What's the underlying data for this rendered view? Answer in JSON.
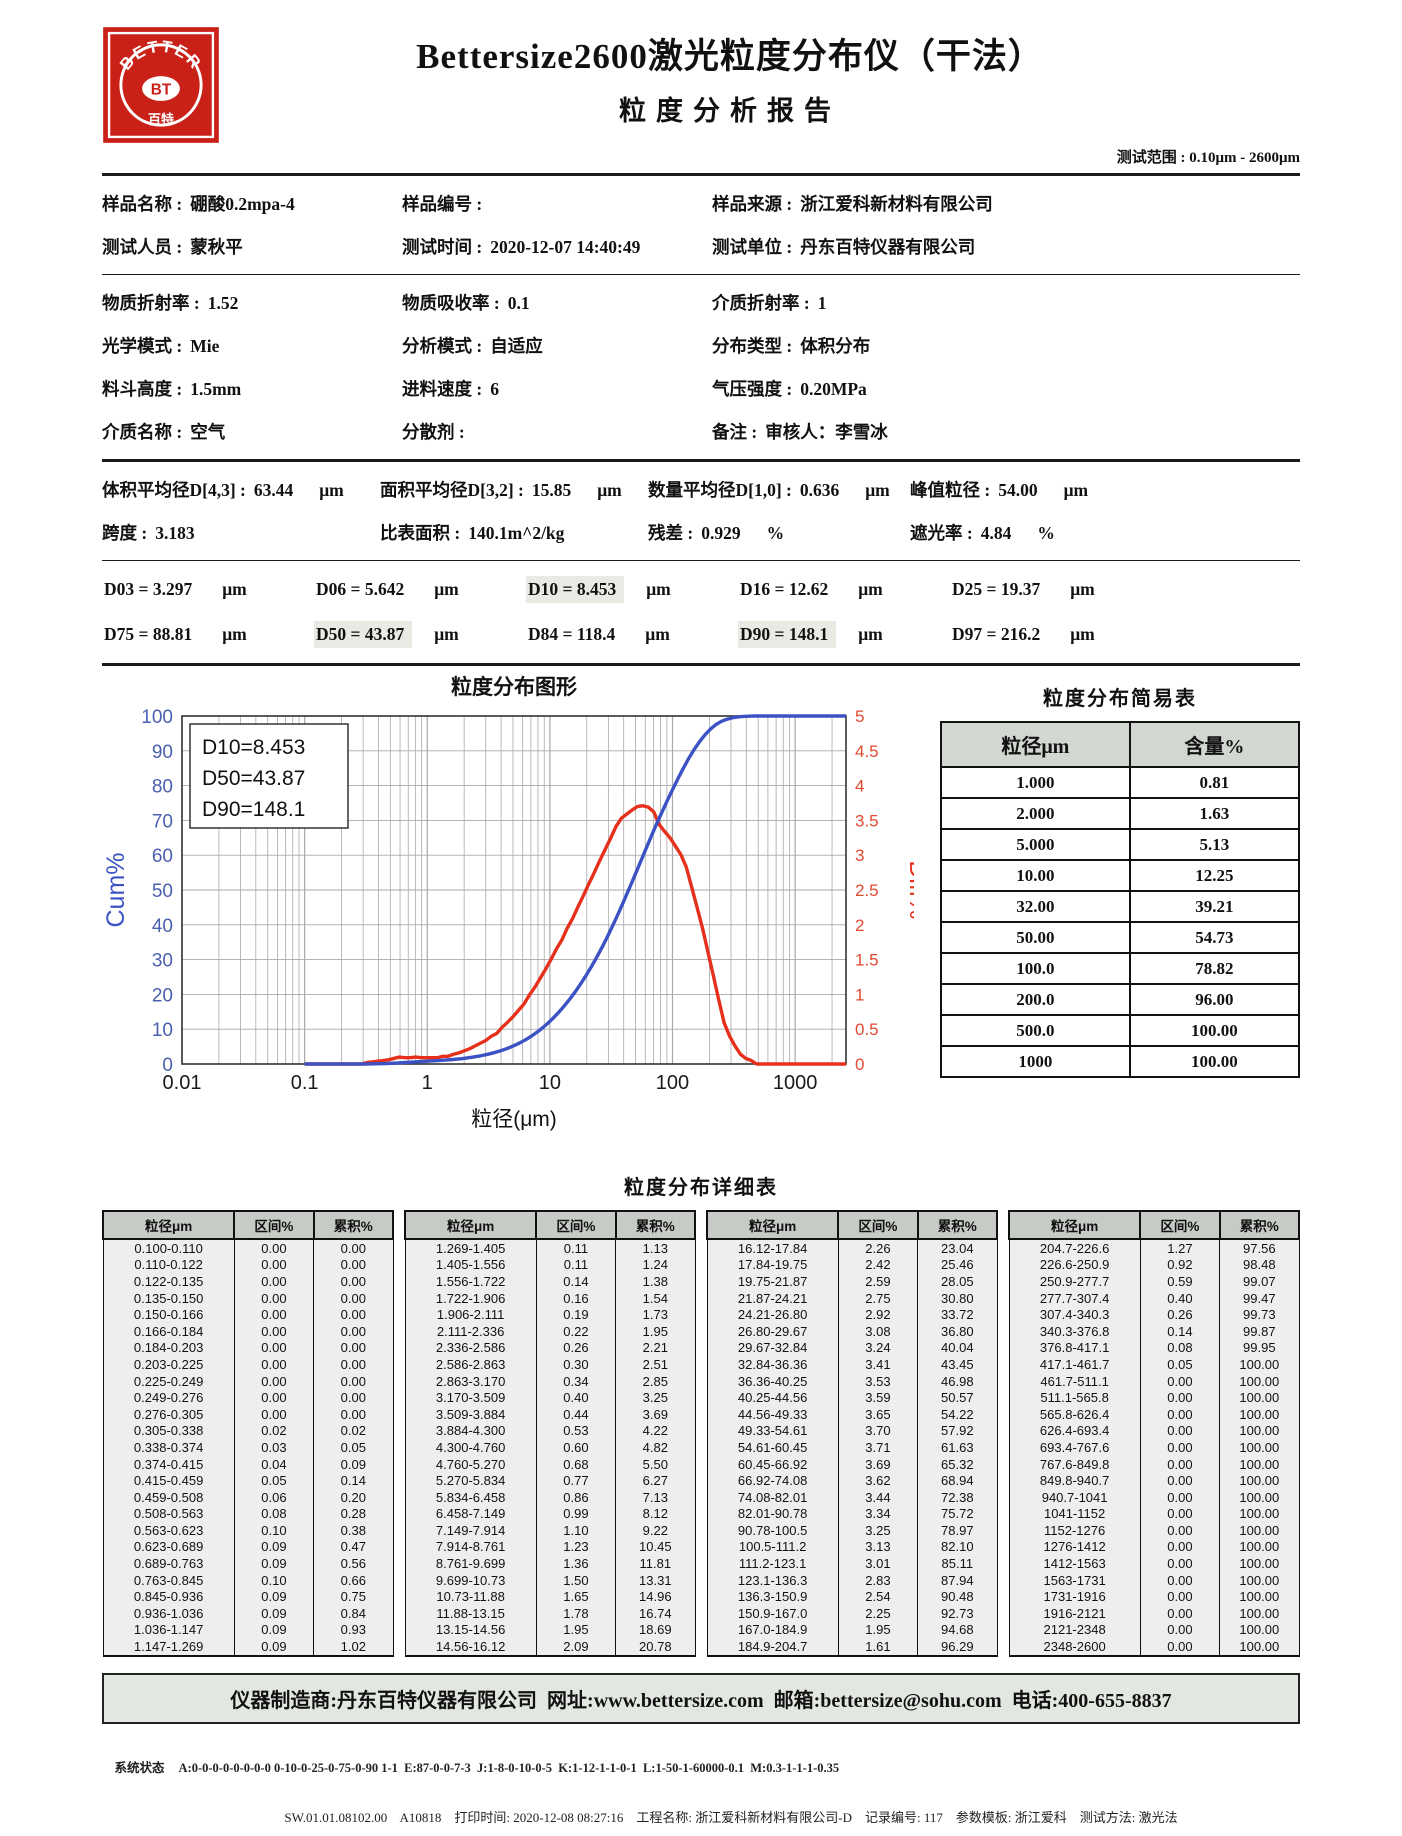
{
  "header": {
    "brand_title": "Bettersize2600激光粒度分布仪（干法）",
    "report_title": "粒度分析报告",
    "test_range": "测试范围 : 0.10μm - 2600μm",
    "logo": {
      "arc_text": "BETTER",
      "center_text": "BT",
      "bottom_text": "百特",
      "color": "#c92018"
    }
  },
  "sample_info": [
    [
      {
        "label": "样品名称 :",
        "value": "硼酸0.2mpa-4"
      },
      {
        "label": "样品编号 :",
        "value": ""
      },
      {
        "label": "样品来源 :",
        "value": "浙江爱科新材料有限公司"
      }
    ],
    [
      {
        "label": "测试人员 :",
        "value": "蒙秋平"
      },
      {
        "label": "测试时间 :",
        "value": "2020-12-07  14:40:49"
      },
      {
        "label": "测试单位 :",
        "value": "丹东百特仪器有限公司"
      }
    ]
  ],
  "parameters": [
    [
      {
        "label": "物质折射率 :",
        "value": "1.52"
      },
      {
        "label": "物质吸收率 :",
        "value": "0.1"
      },
      {
        "label": "介质折射率 :",
        "value": "1"
      }
    ],
    [
      {
        "label": "光学模式 :",
        "value": "Mie"
      },
      {
        "label": "分析模式 :",
        "value": "自适应"
      },
      {
        "label": "分布类型 :",
        "value": "体积分布"
      }
    ],
    [
      {
        "label": "料斗高度 :",
        "value": "1.5mm"
      },
      {
        "label": "进料速度 :",
        "value": "6"
      },
      {
        "label": "气压强度 :",
        "value": "0.20MPa"
      }
    ],
    [
      {
        "label": "介质名称 :",
        "value": "空气"
      },
      {
        "label": "分散剂 :",
        "value": ""
      },
      {
        "label": "备注 :",
        "value": "审核人：李雪冰"
      }
    ]
  ],
  "averages": [
    [
      {
        "label": "体积平均径D[4,3] :",
        "value": "63.44",
        "unit": "μm"
      },
      {
        "label": "面积平均径D[3,2] :",
        "value": "15.85",
        "unit": "μm"
      },
      {
        "label": "数量平均径D[1,0] :",
        "value": "0.636",
        "unit": "μm"
      },
      {
        "label": "峰值粒径 :",
        "value": "54.00",
        "unit": "μm"
      }
    ],
    [
      {
        "label": "跨度 :",
        "value": "3.183",
        "unit": ""
      },
      {
        "label": "比表面积 :",
        "value": "140.1m^2/kg",
        "unit": ""
      },
      {
        "label": "残差 :",
        "value": "0.929",
        "unit": "%"
      },
      {
        "label": "遮光率 :",
        "value": "4.84",
        "unit": "%"
      }
    ]
  ],
  "d_values": [
    [
      {
        "name": "D03",
        "value": "3.297",
        "unit": "μm",
        "highlight": false
      },
      {
        "name": "D06",
        "value": "5.642",
        "unit": "μm",
        "highlight": false
      },
      {
        "name": "D10",
        "value": "8.453",
        "unit": "μm",
        "highlight": true
      },
      {
        "name": "D16",
        "value": "12.62",
        "unit": "μm",
        "highlight": false
      },
      {
        "name": "D25",
        "value": "19.37",
        "unit": "μm",
        "highlight": false
      }
    ],
    [
      {
        "name": "D75",
        "value": "88.81",
        "unit": "μm",
        "highlight": false
      },
      {
        "name": "D50",
        "value": "43.87",
        "unit": "μm",
        "highlight": true
      },
      {
        "name": "D84",
        "value": "118.4",
        "unit": "μm",
        "highlight": false
      },
      {
        "name": "D90",
        "value": "148.1",
        "unit": "μm",
        "highlight": true
      },
      {
        "name": "D97",
        "value": "216.2",
        "unit": "μm",
        "highlight": false
      }
    ]
  ],
  "chart_data": {
    "type": "line",
    "title": "粒度分布图形",
    "xlabel": "粒径(μm)",
    "x_scale": "log",
    "x_range": [
      0.01,
      2600
    ],
    "x_ticks": [
      "0.01",
      "0.1",
      "1",
      "10",
      "100",
      "1000"
    ],
    "y_left": {
      "label": "Cum%",
      "range": [
        0,
        100
      ],
      "tick_step": 10,
      "color": "#4a5fb0"
    },
    "y_right": {
      "label": "Diff%",
      "range": [
        0,
        5
      ],
      "tick_step": 0.5,
      "color": "#e24a30"
    },
    "legend_lines": [
      "D10=8.453",
      "D50=43.87",
      "D90=148.1"
    ],
    "series": [
      {
        "name": "Cum%",
        "axis": "left",
        "color": "#3b52c4",
        "source": "bins cumulative_pct at bin upper edge"
      },
      {
        "name": "Diff%",
        "axis": "right",
        "color": "#e6301c",
        "source": "bins interval_pct at bin geometric mean"
      }
    ],
    "bins_columns": [
      "粒径μm",
      "区间%",
      "累积%"
    ],
    "bins": [
      [
        "0.100-0.110",
        "0.00",
        "0.00"
      ],
      [
        "0.110-0.122",
        "0.00",
        "0.00"
      ],
      [
        "0.122-0.135",
        "0.00",
        "0.00"
      ],
      [
        "0.135-0.150",
        "0.00",
        "0.00"
      ],
      [
        "0.150-0.166",
        "0.00",
        "0.00"
      ],
      [
        "0.166-0.184",
        "0.00",
        "0.00"
      ],
      [
        "0.184-0.203",
        "0.00",
        "0.00"
      ],
      [
        "0.203-0.225",
        "0.00",
        "0.00"
      ],
      [
        "0.225-0.249",
        "0.00",
        "0.00"
      ],
      [
        "0.249-0.276",
        "0.00",
        "0.00"
      ],
      [
        "0.276-0.305",
        "0.00",
        "0.00"
      ],
      [
        "0.305-0.338",
        "0.02",
        "0.02"
      ],
      [
        "0.338-0.374",
        "0.03",
        "0.05"
      ],
      [
        "0.374-0.415",
        "0.04",
        "0.09"
      ],
      [
        "0.415-0.459",
        "0.05",
        "0.14"
      ],
      [
        "0.459-0.508",
        "0.06",
        "0.20"
      ],
      [
        "0.508-0.563",
        "0.08",
        "0.28"
      ],
      [
        "0.563-0.623",
        "0.10",
        "0.38"
      ],
      [
        "0.623-0.689",
        "0.09",
        "0.47"
      ],
      [
        "0.689-0.763",
        "0.09",
        "0.56"
      ],
      [
        "0.763-0.845",
        "0.10",
        "0.66"
      ],
      [
        "0.845-0.936",
        "0.09",
        "0.75"
      ],
      [
        "0.936-1.036",
        "0.09",
        "0.84"
      ],
      [
        "1.036-1.147",
        "0.09",
        "0.93"
      ],
      [
        "1.147-1.269",
        "0.09",
        "1.02"
      ],
      [
        "1.269-1.405",
        "0.11",
        "1.13"
      ],
      [
        "1.405-1.556",
        "0.11",
        "1.24"
      ],
      [
        "1.556-1.722",
        "0.14",
        "1.38"
      ],
      [
        "1.722-1.906",
        "0.16",
        "1.54"
      ],
      [
        "1.906-2.111",
        "0.19",
        "1.73"
      ],
      [
        "2.111-2.336",
        "0.22",
        "1.95"
      ],
      [
        "2.336-2.586",
        "0.26",
        "2.21"
      ],
      [
        "2.586-2.863",
        "0.30",
        "2.51"
      ],
      [
        "2.863-3.170",
        "0.34",
        "2.85"
      ],
      [
        "3.170-3.509",
        "0.40",
        "3.25"
      ],
      [
        "3.509-3.884",
        "0.44",
        "3.69"
      ],
      [
        "3.884-4.300",
        "0.53",
        "4.22"
      ],
      [
        "4.300-4.760",
        "0.60",
        "4.82"
      ],
      [
        "4.760-5.270",
        "0.68",
        "5.50"
      ],
      [
        "5.270-5.834",
        "0.77",
        "6.27"
      ],
      [
        "5.834-6.458",
        "0.86",
        "7.13"
      ],
      [
        "6.458-7.149",
        "0.99",
        "8.12"
      ],
      [
        "7.149-7.914",
        "1.10",
        "9.22"
      ],
      [
        "7.914-8.761",
        "1.23",
        "10.45"
      ],
      [
        "8.761-9.699",
        "1.36",
        "11.81"
      ],
      [
        "9.699-10.73",
        "1.50",
        "13.31"
      ],
      [
        "10.73-11.88",
        "1.65",
        "14.96"
      ],
      [
        "11.88-13.15",
        "1.78",
        "16.74"
      ],
      [
        "13.15-14.56",
        "1.95",
        "18.69"
      ],
      [
        "14.56-16.12",
        "2.09",
        "20.78"
      ],
      [
        "16.12-17.84",
        "2.26",
        "23.04"
      ],
      [
        "17.84-19.75",
        "2.42",
        "25.46"
      ],
      [
        "19.75-21.87",
        "2.59",
        "28.05"
      ],
      [
        "21.87-24.21",
        "2.75",
        "30.80"
      ],
      [
        "24.21-26.80",
        "2.92",
        "33.72"
      ],
      [
        "26.80-29.67",
        "3.08",
        "36.80"
      ],
      [
        "29.67-32.84",
        "3.24",
        "40.04"
      ],
      [
        "32.84-36.36",
        "3.41",
        "43.45"
      ],
      [
        "36.36-40.25",
        "3.53",
        "46.98"
      ],
      [
        "40.25-44.56",
        "3.59",
        "50.57"
      ],
      [
        "44.56-49.33",
        "3.65",
        "54.22"
      ],
      [
        "49.33-54.61",
        "3.70",
        "57.92"
      ],
      [
        "54.61-60.45",
        "3.71",
        "61.63"
      ],
      [
        "60.45-66.92",
        "3.69",
        "65.32"
      ],
      [
        "66.92-74.08",
        "3.62",
        "68.94"
      ],
      [
        "74.08-82.01",
        "3.44",
        "72.38"
      ],
      [
        "82.01-90.78",
        "3.34",
        "75.72"
      ],
      [
        "90.78-100.5",
        "3.25",
        "78.97"
      ],
      [
        "100.5-111.2",
        "3.13",
        "82.10"
      ],
      [
        "111.2-123.1",
        "3.01",
        "85.11"
      ],
      [
        "123.1-136.3",
        "2.83",
        "87.94"
      ],
      [
        "136.3-150.9",
        "2.54",
        "90.48"
      ],
      [
        "150.9-167.0",
        "2.25",
        "92.73"
      ],
      [
        "167.0-184.9",
        "1.95",
        "94.68"
      ],
      [
        "184.9-204.7",
        "1.61",
        "96.29"
      ],
      [
        "204.7-226.6",
        "1.27",
        "97.56"
      ],
      [
        "226.6-250.9",
        "0.92",
        "98.48"
      ],
      [
        "250.9-277.7",
        "0.59",
        "99.07"
      ],
      [
        "277.7-307.4",
        "0.40",
        "99.47"
      ],
      [
        "307.4-340.3",
        "0.26",
        "99.73"
      ],
      [
        "340.3-376.8",
        "0.14",
        "99.87"
      ],
      [
        "376.8-417.1",
        "0.08",
        "99.95"
      ],
      [
        "417.1-461.7",
        "0.05",
        "100.00"
      ],
      [
        "461.7-511.1",
        "0.00",
        "100.00"
      ],
      [
        "511.1-565.8",
        "0.00",
        "100.00"
      ],
      [
        "565.8-626.4",
        "0.00",
        "100.00"
      ],
      [
        "626.4-693.4",
        "0.00",
        "100.00"
      ],
      [
        "693.4-767.6",
        "0.00",
        "100.00"
      ],
      [
        "767.6-849.8",
        "0.00",
        "100.00"
      ],
      [
        "849.8-940.7",
        "0.00",
        "100.00"
      ],
      [
        "940.7-1041",
        "0.00",
        "100.00"
      ],
      [
        "1041-1152",
        "0.00",
        "100.00"
      ],
      [
        "1152-1276",
        "0.00",
        "100.00"
      ],
      [
        "1276-1412",
        "0.00",
        "100.00"
      ],
      [
        "1412-1563",
        "0.00",
        "100.00"
      ],
      [
        "1563-1731",
        "0.00",
        "100.00"
      ],
      [
        "1731-1916",
        "0.00",
        "100.00"
      ],
      [
        "1916-2121",
        "0.00",
        "100.00"
      ],
      [
        "2121-2348",
        "0.00",
        "100.00"
      ],
      [
        "2348-2600",
        "0.00",
        "100.00"
      ]
    ]
  },
  "simple_table": {
    "title": "粒度分布简易表",
    "headers": [
      "粒径μm",
      "含量%"
    ],
    "rows": [
      [
        "1.000",
        "0.81"
      ],
      [
        "2.000",
        "1.63"
      ],
      [
        "5.000",
        "5.13"
      ],
      [
        "10.00",
        "12.25"
      ],
      [
        "32.00",
        "39.21"
      ],
      [
        "50.00",
        "54.73"
      ],
      [
        "100.0",
        "78.82"
      ],
      [
        "200.0",
        "96.00"
      ],
      [
        "500.0",
        "100.00"
      ],
      [
        "1000",
        "100.00"
      ]
    ]
  },
  "detail_table": {
    "title": "粒度分布详细表",
    "group_headers": [
      "粒径μm",
      "区间%",
      "累积%"
    ],
    "groups": 4,
    "rows_per_group": 25
  },
  "footer": {
    "manufacturer_line": "仪器制造商:丹东百特仪器有限公司  网址:www.bettersize.com  邮箱:bettersize@sohu.com  电话:400-655-8837",
    "system_status_label": "系统状态",
    "system_status": "A:0-0-0-0-0-0-0-0 0-10-0-25-0-75-0-90 1-1  E:87-0-0-7-3  J:1-8-0-10-0-5  K:1-12-1-1-0-1  L:1-50-1-60000-0.1  M:0.3-1-1-1-0.35",
    "print_line": "SW.01.01.08102.00    A10818    打印时间: 2020-12-08 08:27:16    工程名称: 浙江爱科新材料有限公司-D    记录编号: 117    参数模板: 浙江爱科    测试方法: 激光法"
  }
}
